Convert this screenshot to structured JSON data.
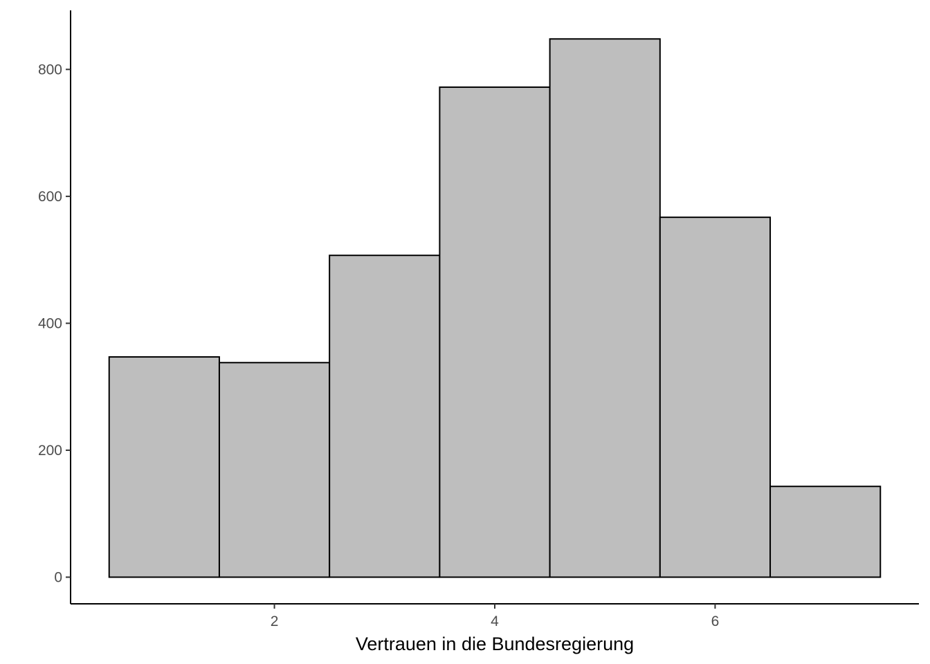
{
  "chart_data": {
    "type": "bar",
    "title": "",
    "xlabel": "Vertrauen in die Bundesregierung",
    "ylabel": "",
    "x": [
      1,
      2,
      3,
      4,
      5,
      6,
      7
    ],
    "bin_width": 1,
    "values": [
      347,
      338,
      507,
      772,
      848,
      567,
      143
    ],
    "xlim": [
      0.15,
      7.85
    ],
    "ylim": [
      -42,
      893
    ],
    "x_ticks": [
      2,
      4,
      6
    ],
    "y_ticks": [
      0,
      200,
      400,
      600,
      800
    ],
    "grid": false,
    "legend": "none",
    "colors": {
      "bar_fill": "#bebebe",
      "bar_stroke": "#000000",
      "axis": "#000000",
      "tick_text": "#4d4d4d"
    }
  }
}
